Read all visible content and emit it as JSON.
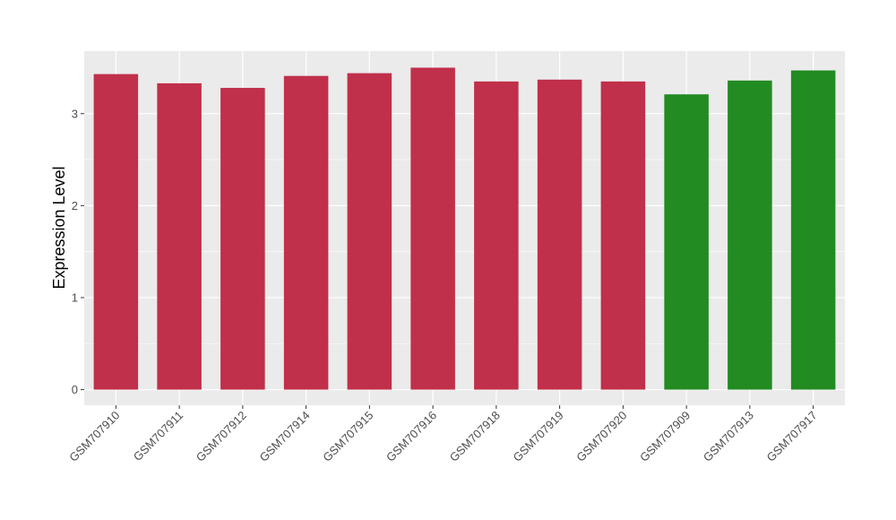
{
  "chart_data": {
    "type": "bar",
    "title": "",
    "xlabel": "",
    "ylabel": "Expression Level",
    "ylim": [
      -0.17,
      3.68
    ],
    "y_ticks": [
      0,
      1,
      2,
      3
    ],
    "grid": true,
    "legend": "none",
    "categories": [
      "GSM707910",
      "GSM707911",
      "GSM707912",
      "GSM707914",
      "GSM707915",
      "GSM707916",
      "GSM707918",
      "GSM707919",
      "GSM707920",
      "GSM707909",
      "GSM707913",
      "GSM707917"
    ],
    "values": [
      3.43,
      3.33,
      3.28,
      3.41,
      3.44,
      3.5,
      3.35,
      3.37,
      3.35,
      3.21,
      3.36,
      3.47
    ],
    "bar_colors": [
      "#c0304a",
      "#c0304a",
      "#c0304a",
      "#c0304a",
      "#c0304a",
      "#c0304a",
      "#c0304a",
      "#c0304a",
      "#c0304a",
      "#228b22",
      "#228b22",
      "#228b22"
    ],
    "panel_background": "#ebebeb",
    "gridline_color": "#ffffff"
  }
}
